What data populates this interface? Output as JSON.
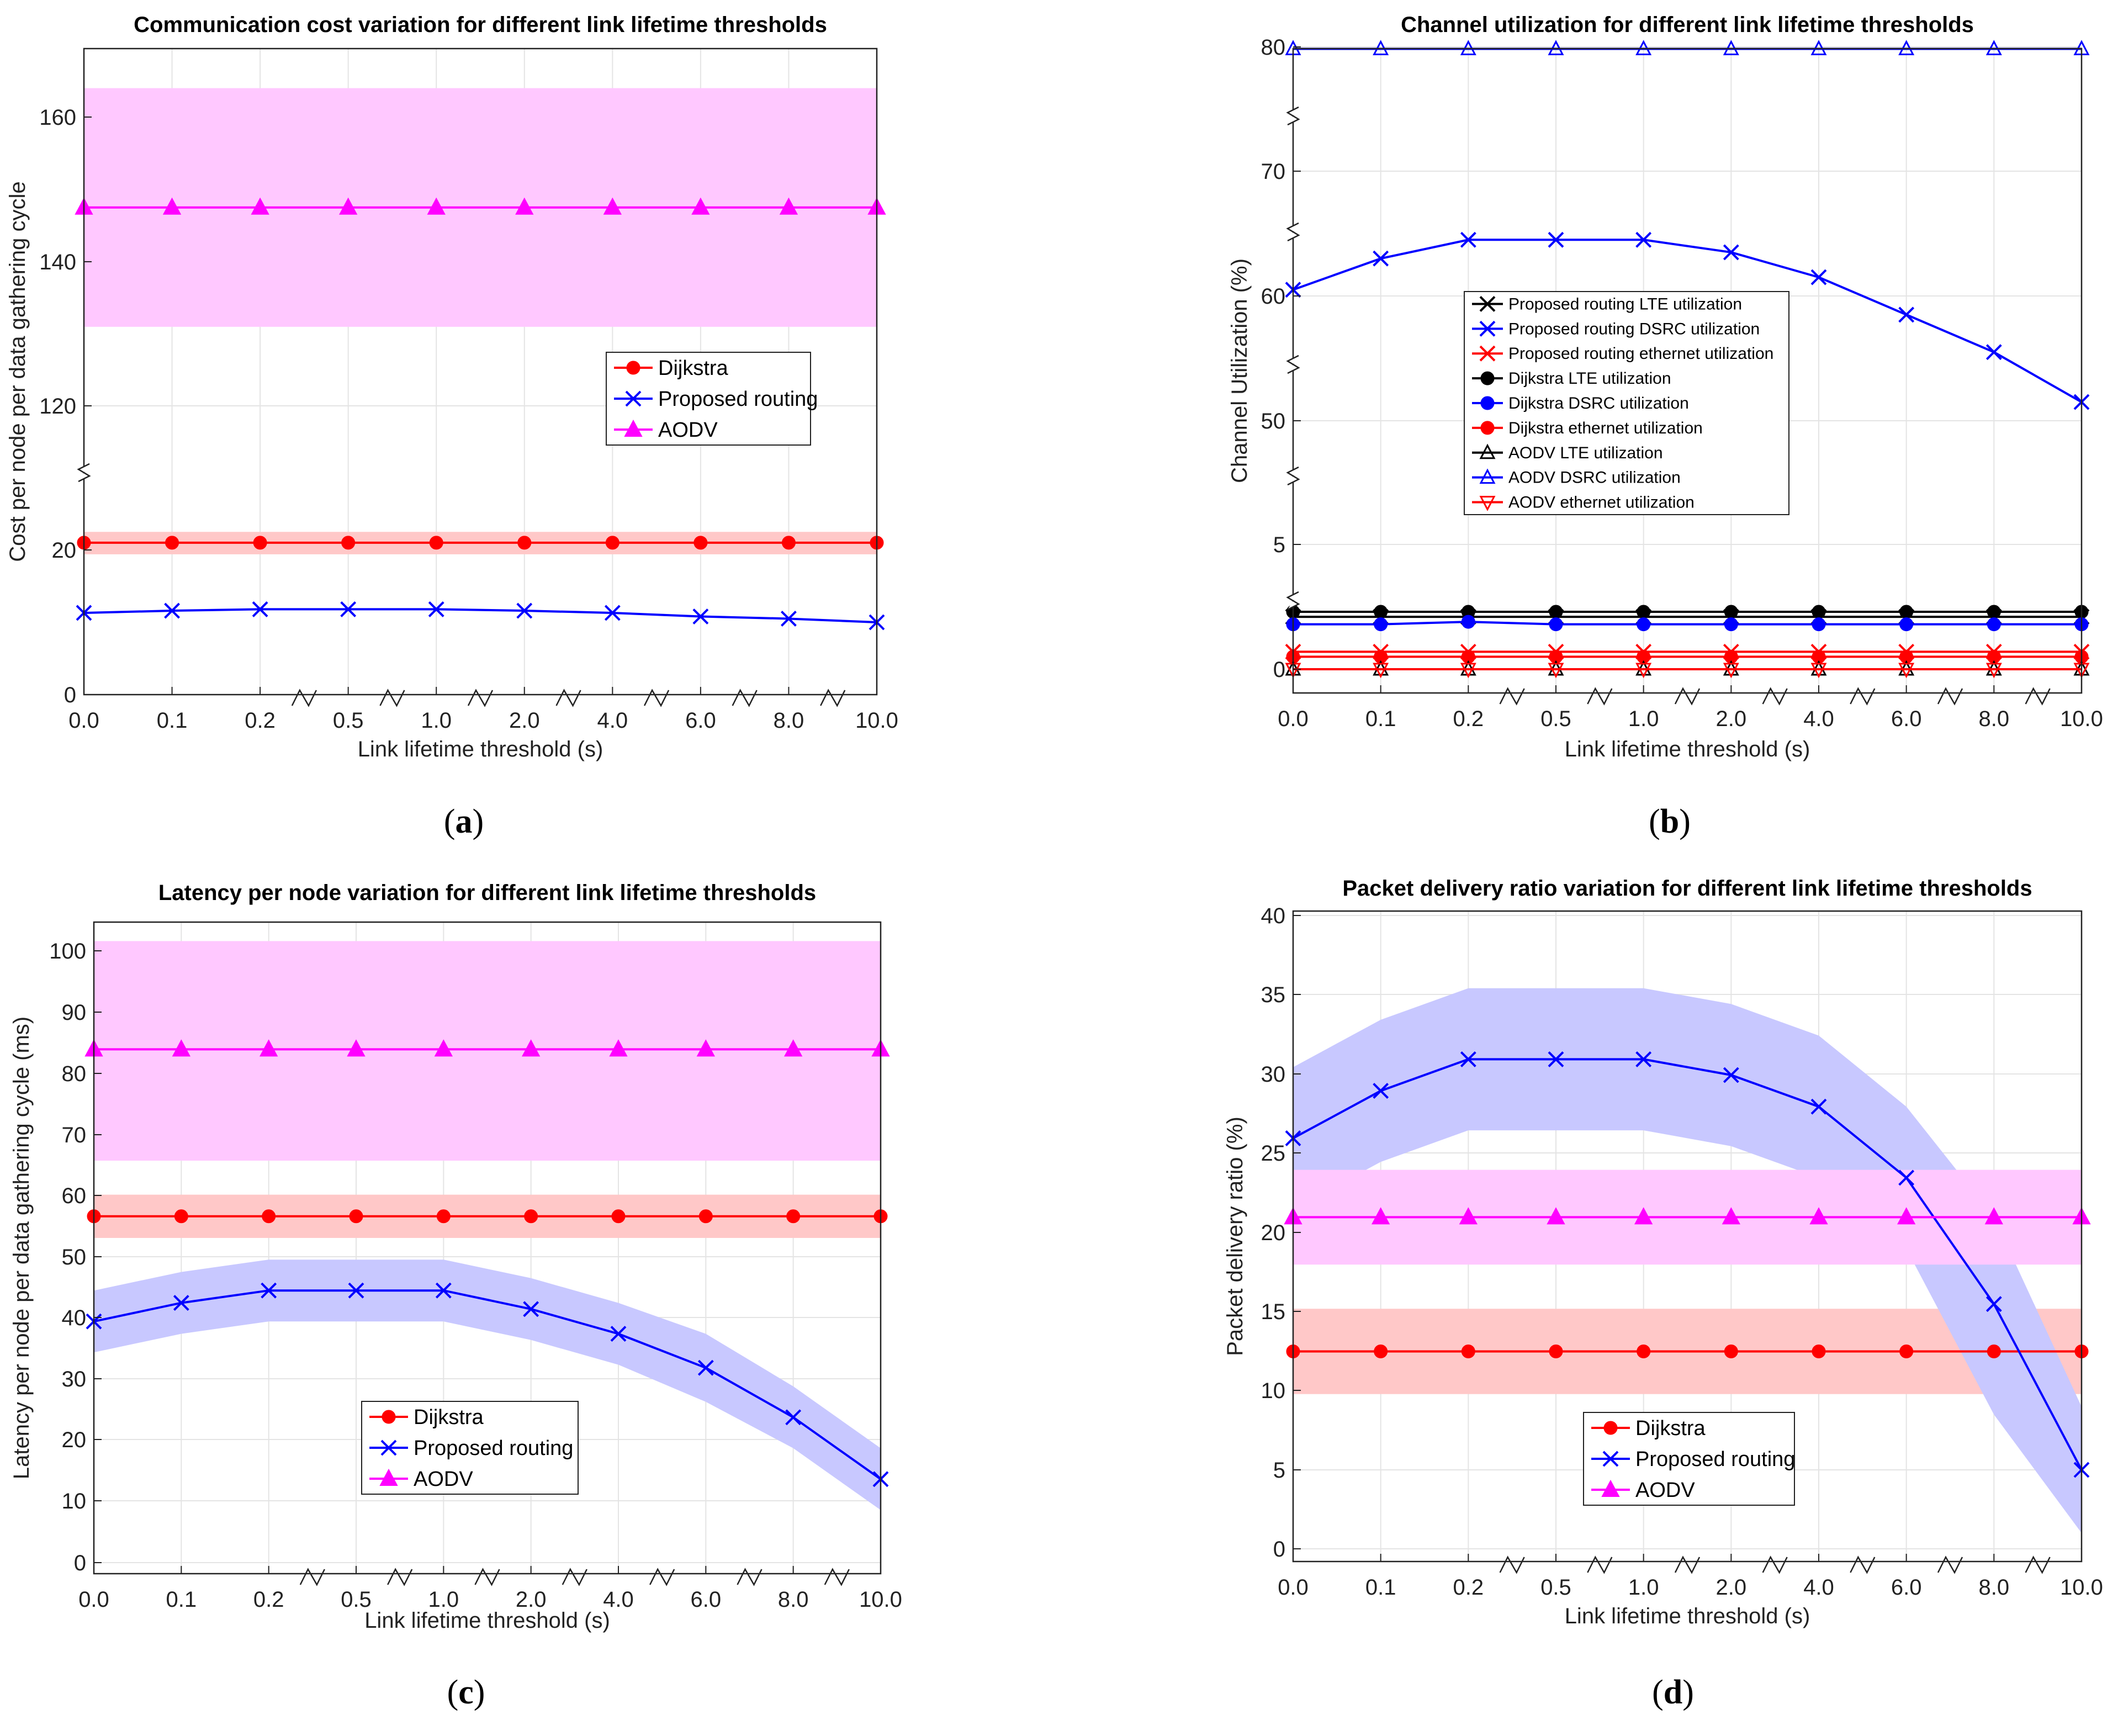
{
  "panels": [
    {
      "label": "a",
      "title": "Communication cost variation for different link lifetime thresholds",
      "xlabel": "Link lifetime threshold (s)",
      "ylabel": "Cost per node per data gathering cycle"
    },
    {
      "label": "b",
      "title": "Channel utilization for different link lifetime thresholds",
      "xlabel": "Link lifetime threshold (s)",
      "ylabel": "Channel Utilization (%)"
    },
    {
      "label": "c",
      "title": "Latency per node variation for different link lifetime thresholds",
      "xlabel": "Link lifetime threshold (s)",
      "ylabel": "Latency per node per data gathering cycle (ms)"
    },
    {
      "label": "d",
      "title": "Packet delivery ratio variation for different link lifetime thresholds",
      "xlabel": "Link lifetime threshold (s)",
      "ylabel": "Packet delivery ratio (%)"
    }
  ],
  "chart_data": [
    {
      "type": "line",
      "title": "Communication cost variation for different link lifetime thresholds",
      "xlabel": "Link lifetime threshold (s)",
      "ylabel": "Cost per node per data gathering cycle",
      "x": [
        "0.0",
        "0.1",
        "0.2",
        "0.5",
        "1.0",
        "2.0",
        "4.0",
        "6.0",
        "8.0",
        "10.0"
      ],
      "y_broken_axis": true,
      "y_ticks": [
        "0",
        "20",
        "120",
        "140",
        "160"
      ],
      "grid": true,
      "legend_position": "center-right",
      "series": [
        {
          "name": "Dijkstra",
          "color": "#ff0000",
          "marker": "circle",
          "values": [
            21,
            21,
            21,
            21,
            21,
            21,
            21,
            21,
            21,
            21
          ],
          "band_low": [
            19.4,
            19.4,
            19.4,
            19.4,
            19.4,
            19.4,
            19.4,
            19.4,
            19.4,
            19.4
          ],
          "band_high": [
            22.5,
            22.5,
            22.5,
            22.5,
            22.5,
            22.5,
            22.5,
            22.5,
            22.5,
            22.5
          ]
        },
        {
          "name": "Proposed routing",
          "color": "#0000ff",
          "marker": "x",
          "values": [
            11.3,
            11.6,
            11.8,
            11.8,
            11.8,
            11.6,
            11.3,
            10.8,
            10.5,
            10.0
          ]
        },
        {
          "name": "AODV",
          "color": "#ff00ff",
          "marker": "triangle",
          "values": [
            147.5,
            147.5,
            147.5,
            147.5,
            147.5,
            147.5,
            147.5,
            147.5,
            147.5,
            147.5
          ],
          "band_low": [
            131,
            131,
            131,
            131,
            131,
            131,
            131,
            131,
            131,
            131
          ],
          "band_high": [
            164,
            164,
            164,
            164,
            164,
            164,
            164,
            164,
            164,
            164
          ]
        }
      ]
    },
    {
      "type": "line",
      "title": "Channel utilization for different link lifetime thresholds",
      "xlabel": "Link lifetime threshold (s)",
      "ylabel": "Channel Utilization (%)",
      "x": [
        "0.0",
        "0.1",
        "0.2",
        "0.5",
        "1.0",
        "2.0",
        "4.0",
        "6.0",
        "8.0",
        "10.0"
      ],
      "y_broken_axis": true,
      "y_ticks": [
        "0",
        "5",
        "50",
        "60",
        "70",
        "80"
      ],
      "grid": true,
      "legend_position": "center",
      "series": [
        {
          "name": "Proposed routing LTE utilization",
          "color": "#000000",
          "marker": "x",
          "values": [
            2.1,
            2.1,
            2.1,
            2.1,
            2.1,
            2.1,
            2.1,
            2.1,
            2.1,
            2.1
          ]
        },
        {
          "name": "Proposed routing DSRC utilization",
          "color": "#0000ff",
          "marker": "x",
          "values": [
            60.5,
            63.0,
            64.5,
            64.5,
            64.5,
            63.5,
            61.5,
            58.5,
            55.5,
            51.5
          ]
        },
        {
          "name": "Proposed routing ethernet utilization",
          "color": "#ff0000",
          "marker": "x",
          "values": [
            0.7,
            0.7,
            0.7,
            0.7,
            0.7,
            0.7,
            0.7,
            0.7,
            0.7,
            0.7
          ]
        },
        {
          "name": "Dijkstra LTE utilization",
          "color": "#000000",
          "marker": "circle",
          "values": [
            2.3,
            2.3,
            2.3,
            2.3,
            2.3,
            2.3,
            2.3,
            2.3,
            2.3,
            2.3
          ]
        },
        {
          "name": "Dijkstra DSRC utilization",
          "color": "#0000ff",
          "marker": "circle",
          "values": [
            1.8,
            1.8,
            1.9,
            1.8,
            1.8,
            1.8,
            1.8,
            1.8,
            1.8,
            1.8
          ]
        },
        {
          "name": "Dijkstra ethernet utilization",
          "color": "#ff0000",
          "marker": "circle",
          "values": [
            0.5,
            0.5,
            0.5,
            0.5,
            0.5,
            0.5,
            0.5,
            0.5,
            0.5,
            0.5
          ]
        },
        {
          "name": "AODV LTE utilization",
          "color": "#000000",
          "marker": "triangle-open",
          "values": [
            0.0,
            0.0,
            0.0,
            0.0,
            0.0,
            0.0,
            0.0,
            0.0,
            0.0,
            0.0
          ]
        },
        {
          "name": "AODV DSRC utilization",
          "color": "#0000ff",
          "marker": "triangle-open",
          "values": [
            79.8,
            79.8,
            79.8,
            79.8,
            79.8,
            79.8,
            79.8,
            79.8,
            79.8,
            79.8
          ]
        },
        {
          "name": "AODV ethernet utilization",
          "color": "#ff0000",
          "marker": "triangle-down-open",
          "values": [
            0.0,
            0.0,
            0.0,
            0.0,
            0.0,
            0.0,
            0.0,
            0.0,
            0.0,
            0.0
          ]
        }
      ]
    },
    {
      "type": "line",
      "title": "Latency per node variation for different link lifetime thresholds",
      "xlabel": "Link lifetime threshold (s)",
      "ylabel": "Latency per node per data gathering cycle (ms)",
      "x": [
        "0.0",
        "0.1",
        "0.2",
        "0.5",
        "1.0",
        "2.0",
        "4.0",
        "6.0",
        "8.0",
        "10.0"
      ],
      "y_ticks": [
        "0",
        "10",
        "20",
        "30",
        "40",
        "50",
        "60",
        "70",
        "80",
        "90",
        "100"
      ],
      "ylim": [
        -1,
        105
      ],
      "grid": true,
      "legend_position": "bottom-center",
      "series": [
        {
          "name": "Dijkstra",
          "color": "#ff0000",
          "marker": "circle",
          "values": [
            56,
            56,
            56,
            56,
            56,
            56,
            56,
            56,
            56,
            56
          ],
          "band_low": [
            52.5,
            52.5,
            52.5,
            52.5,
            52.5,
            52.5,
            52.5,
            52.5,
            52.5,
            52.5
          ],
          "band_high": [
            59.5,
            59.5,
            59.5,
            59.5,
            59.5,
            59.5,
            59.5,
            59.5,
            59.5,
            59.5
          ]
        },
        {
          "name": "Proposed routing",
          "color": "#0000ff",
          "marker": "x",
          "values": [
            39,
            42,
            44,
            44,
            44,
            41,
            37,
            31.5,
            23.5,
            13.5
          ],
          "band_low": [
            34,
            37,
            39,
            39,
            39,
            36,
            32,
            26,
            18.5,
            8.5
          ],
          "band_high": [
            44,
            47,
            49,
            49,
            49,
            46,
            42,
            37,
            28.5,
            18.5
          ]
        },
        {
          "name": "AODV",
          "color": "#ff00ff",
          "marker": "triangle",
          "values": [
            83,
            83,
            83,
            83,
            83,
            83,
            83,
            83,
            83,
            83
          ],
          "band_low": [
            65,
            65,
            65,
            65,
            65,
            65,
            65,
            65,
            65,
            65
          ],
          "band_high": [
            100.5,
            100.5,
            100.5,
            100.5,
            100.5,
            100.5,
            100.5,
            100.5,
            100.5,
            100.5
          ]
        }
      ]
    },
    {
      "type": "line",
      "title": "Packet delivery ratio variation for different link lifetime thresholds",
      "xlabel": "Link lifetime threshold (s)",
      "ylabel": "Packet delivery ratio (%)",
      "x": [
        "0.0",
        "0.1",
        "0.2",
        "0.5",
        "1.0",
        "2.0",
        "4.0",
        "6.0",
        "8.0",
        "10.0"
      ],
      "y_ticks": [
        "0",
        "5",
        "10",
        "15",
        "20",
        "25",
        "30",
        "35",
        "40"
      ],
      "ylim": [
        -1,
        40
      ],
      "grid": true,
      "legend_position": "bottom-center",
      "series": [
        {
          "name": "Dijkstra",
          "color": "#ff0000",
          "marker": "circle",
          "values": [
            12.5,
            12.5,
            12.5,
            12.5,
            12.5,
            12.5,
            12.5,
            12.5,
            12.5,
            12.5
          ],
          "band_low": [
            9.8,
            9.8,
            9.8,
            9.8,
            9.8,
            9.8,
            9.8,
            9.8,
            9.8,
            9.8
          ],
          "band_high": [
            15.2,
            15.2,
            15.2,
            15.2,
            15.2,
            15.2,
            15.2,
            15.2,
            15.2,
            15.2
          ]
        },
        {
          "name": "Proposed routing",
          "color": "#0000ff",
          "marker": "x",
          "values": [
            26,
            29,
            31,
            31,
            31,
            30,
            28,
            23.5,
            15.5,
            5
          ],
          "band_low": [
            21.5,
            24.5,
            26.5,
            26.5,
            26.5,
            25.5,
            23.5,
            19,
            8.5,
            1
          ],
          "band_high": [
            30.5,
            33.5,
            35.5,
            35.5,
            35.5,
            34.5,
            32.5,
            28,
            21,
            9
          ]
        },
        {
          "name": "AODV",
          "color": "#ff00ff",
          "marker": "triangle",
          "values": [
            21,
            21,
            21,
            21,
            21,
            21,
            21,
            21,
            21,
            21
          ],
          "band_low": [
            18,
            18,
            18,
            18,
            18,
            18,
            18,
            18,
            18,
            18
          ],
          "band_high": [
            24,
            24,
            24,
            24,
            24,
            24,
            24,
            24,
            24,
            24
          ]
        }
      ]
    }
  ]
}
